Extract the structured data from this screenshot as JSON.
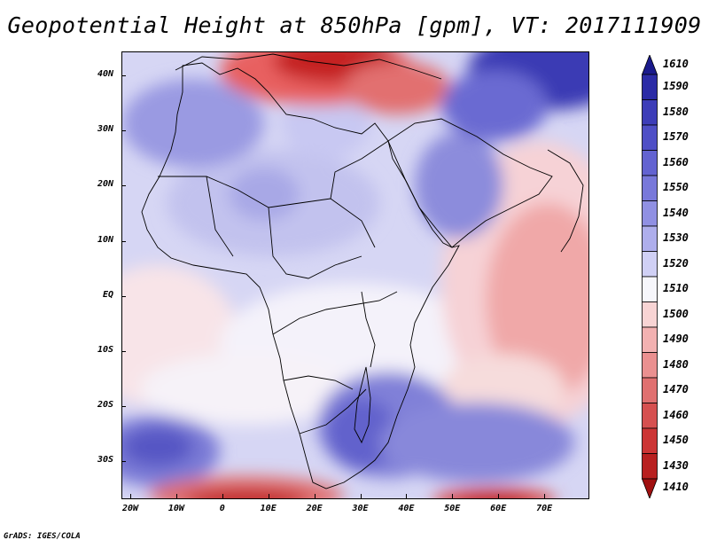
{
  "title": "Geopotential Height at 850hPa [gpm], VT: 2017111909",
  "credit": "GrADS: IGES/COLA",
  "lat_labels": [
    "40N",
    "30N",
    "20N",
    "10N",
    "EQ",
    "10S",
    "20S",
    "30S"
  ],
  "lon_labels": [
    "20W",
    "10W",
    "0",
    "10E",
    "20E",
    "30E",
    "40E",
    "50E",
    "60E",
    "70E"
  ],
  "colorbar": {
    "levels": [
      "1610",
      "1590",
      "1580",
      "1570",
      "1560",
      "1550",
      "1540",
      "1530",
      "1520",
      "1510",
      "1500",
      "1490",
      "1480",
      "1470",
      "1460",
      "1450",
      "1430",
      "1410"
    ],
    "colors": [
      "#1a1a8c",
      "#2b2ba6",
      "#3d3db8",
      "#4f4fc6",
      "#6363d1",
      "#7878da",
      "#9090e3",
      "#aeaeec",
      "#d0d0f5",
      "#f6f6fb",
      "#f8d4d4",
      "#f2b1b1",
      "#ea9090",
      "#e07070",
      "#d65050",
      "#cc3535",
      "#b82020",
      "#a01010"
    ]
  }
}
